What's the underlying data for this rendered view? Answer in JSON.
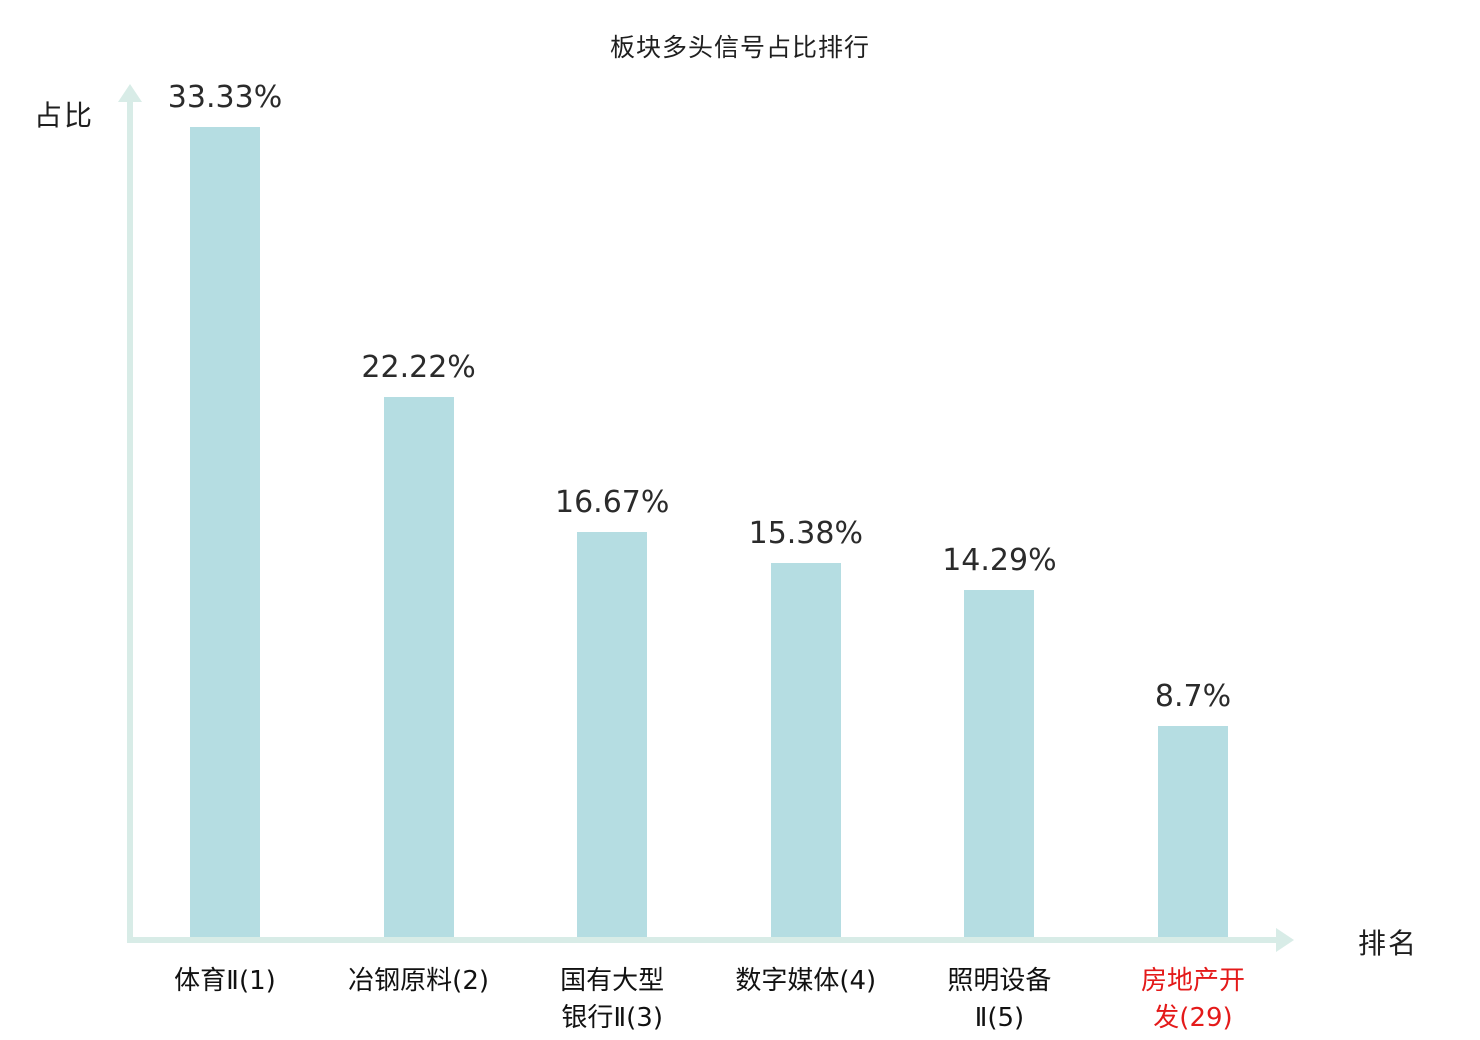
{
  "chart_data": {
    "type": "bar",
    "title": "板块多头信号占比排行",
    "xlabel": "排名",
    "ylabel": "占比",
    "categories": [
      "体育Ⅱ(1)",
      "冶钢原料(2)",
      "国有大型\n银行Ⅱ(3)",
      "数字媒体(4)",
      "照明设备\nⅡ(5)",
      "房地产开\n发(29)"
    ],
    "values": [
      33.33,
      22.22,
      16.67,
      15.38,
      14.29,
      8.7
    ],
    "value_labels": [
      "33.33%",
      "22.22%",
      "16.67%",
      "15.38%",
      "14.29%",
      "8.7%"
    ],
    "highlight_index": 5,
    "highlight_color": "#e41a1a",
    "bar_color": "#b5dde2",
    "axis_color": "#d8ece7",
    "ylim": [
      0,
      35
    ],
    "grid": false,
    "legend": "none"
  }
}
